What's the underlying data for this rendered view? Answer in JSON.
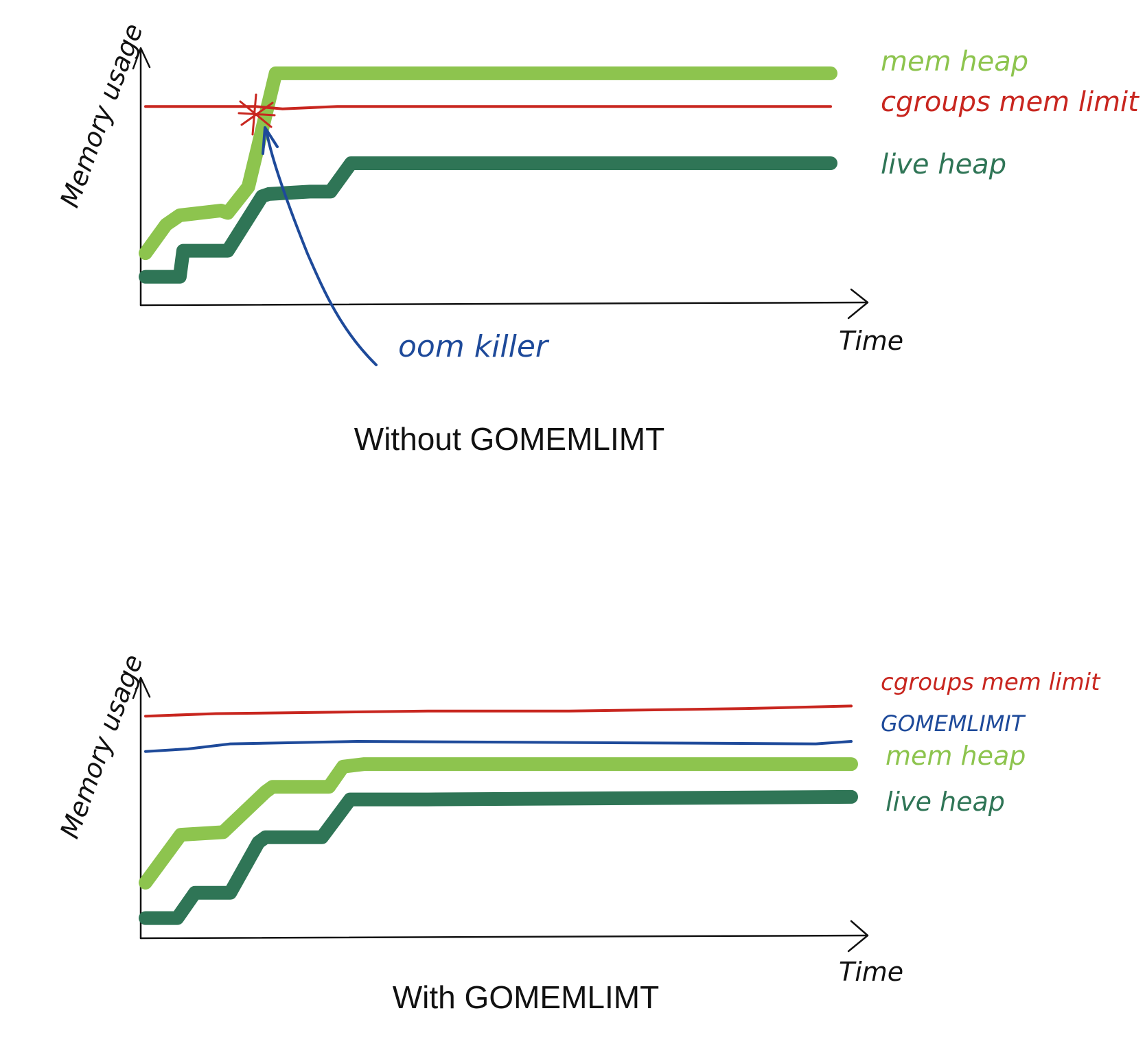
{
  "colors": {
    "mem_heap": "#8dc44e",
    "live_heap": "#2f7556",
    "cgroups": "#c8261f",
    "gomemlimit": "#1e4a9a",
    "annotation": "#1e4a9a",
    "axis": "#111111"
  },
  "chart_data": [
    {
      "type": "line",
      "caption": "Without GOMEMLIMT",
      "ylabel": "Memory usage",
      "xlabel": "Time",
      "ylim": [
        0,
        100
      ],
      "xlim": [
        0,
        100
      ],
      "grid": false,
      "legend_position": "right",
      "series": [
        {
          "key": "mem_heap",
          "name": "mem heap",
          "color": "#8dc44e",
          "stroke": "thick",
          "x": [
            0,
            3,
            5,
            11,
            12,
            15,
            19,
            100
          ],
          "y": [
            22,
            34,
            38,
            40,
            39,
            50,
            98,
            98
          ]
        },
        {
          "key": "cgroups",
          "name": "cgroups mem limit",
          "color": "#c8261f",
          "stroke": "thin",
          "x": [
            0,
            16,
            20,
            28,
            100
          ],
          "y": [
            84,
            84,
            83,
            84,
            84
          ]
        },
        {
          "key": "live_heap",
          "name": "live heap",
          "color": "#2f7556",
          "stroke": "thick",
          "x": [
            0,
            5,
            5.5,
            12,
            17,
            18,
            24,
            27,
            30,
            100
          ],
          "y": [
            12,
            12,
            23,
            23,
            46,
            47,
            48,
            48,
            60,
            60
          ]
        }
      ],
      "annotations": [
        {
          "label": "oom killer",
          "color": "#1e4a9a",
          "points_to": {
            "x": 17,
            "y": 83
          }
        }
      ],
      "legend": [
        "mem heap",
        "cgroups mem limit",
        "live heap"
      ]
    },
    {
      "type": "line",
      "caption": "With GOMEMLIMT",
      "ylabel": "Memory usage",
      "xlabel": "Time",
      "ylim": [
        0,
        100
      ],
      "xlim": [
        0,
        100
      ],
      "grid": false,
      "legend_position": "right",
      "series": [
        {
          "key": "cgroups",
          "name": "cgroups mem limit",
          "color": "#c8261f",
          "stroke": "thin",
          "x": [
            0,
            10,
            40,
            60,
            85,
            100
          ],
          "y": [
            88,
            89,
            90,
            90,
            91,
            92
          ]
        },
        {
          "key": "gomemlimit",
          "name": "GOMEMLIMIT",
          "color": "#1e4a9a",
          "stroke": "thin",
          "x": [
            0,
            6,
            12,
            30,
            95,
            100
          ],
          "y": [
            74,
            75,
            77,
            78,
            77,
            78
          ]
        },
        {
          "key": "mem_heap",
          "name": "mem heap",
          "color": "#8dc44e",
          "stroke": "thick",
          "x": [
            0,
            5,
            11,
            17,
            18,
            26,
            28,
            31,
            50,
            100
          ],
          "y": [
            22,
            41,
            42,
            58,
            60,
            60,
            68,
            69,
            69,
            69
          ]
        },
        {
          "key": "live_heap",
          "name": "live heap",
          "color": "#2f7556",
          "stroke": "thick",
          "x": [
            0,
            4.5,
            7,
            12,
            16,
            17,
            25,
            29,
            40,
            100
          ],
          "y": [
            8,
            8,
            18,
            18,
            38,
            40,
            40,
            55,
            55,
            56
          ]
        }
      ],
      "legend": [
        "cgroups mem limit",
        "GOMEMLIMIT",
        "mem heap",
        "live heap"
      ]
    }
  ]
}
